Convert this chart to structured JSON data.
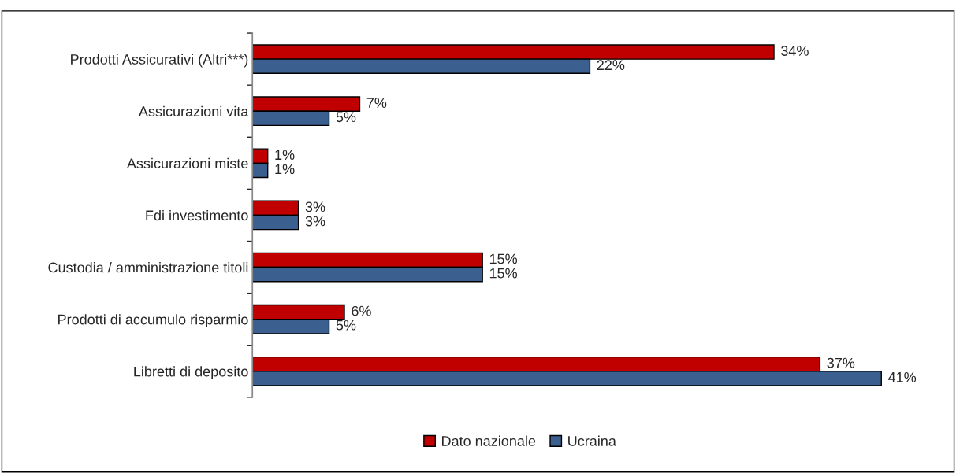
{
  "chart_data": {
    "type": "bar",
    "orientation": "horizontal",
    "categories": [
      "Prodotti Assicurativi (Altri***)",
      "Assicurazioni vita",
      "Assicurazioni miste",
      "Fdi investimento",
      "Custodia / amministrazione titoli",
      "Prodotti di accumulo risparmio",
      "Libretti di deposito"
    ],
    "series": [
      {
        "name": "Dato nazionale",
        "color": "#c00000",
        "values": [
          34,
          7,
          1,
          3,
          15,
          6,
          37
        ],
        "value_labels": [
          "34%",
          "7%",
          "1%",
          "3%",
          "15%",
          "6%",
          "37%"
        ]
      },
      {
        "name": "Ucraina",
        "color": "#3b5f8e",
        "values": [
          22,
          5,
          1,
          3,
          15,
          5,
          41
        ],
        "value_labels": [
          "22%",
          "5%",
          "1%",
          "3%",
          "15%",
          "5%",
          "41%"
        ]
      }
    ],
    "legend": "bottom",
    "grid": false,
    "tick_labels": "y"
  }
}
